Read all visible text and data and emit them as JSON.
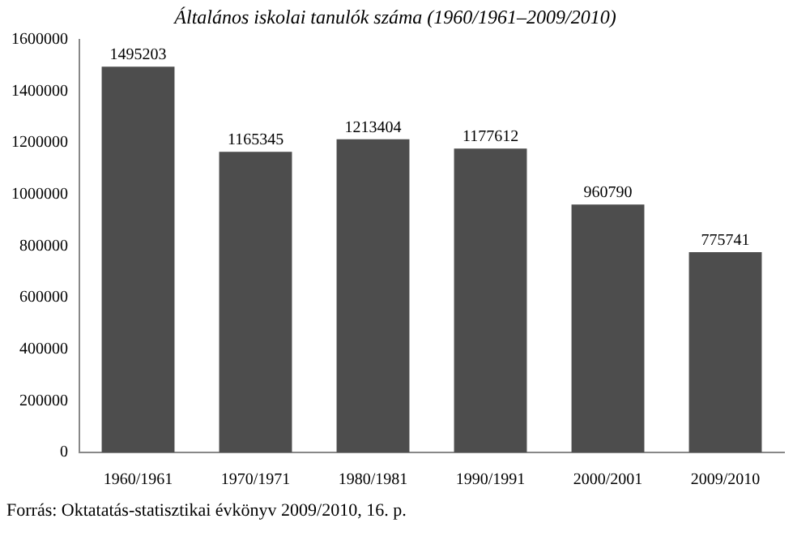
{
  "chart_data": {
    "type": "bar",
    "title": "Általános iskolai tanulók száma (1960/1961–2009/2010)",
    "categories": [
      "1960/1961",
      "1970/1971",
      "1980/1981",
      "1990/1991",
      "2000/2001",
      "2009/2010"
    ],
    "values": [
      1495203,
      1165345,
      1213404,
      1177612,
      960790,
      775741
    ],
    "color": "#4d4d4d",
    "ylim": [
      0,
      1600000
    ],
    "yticks": [
      0,
      200000,
      400000,
      600000,
      800000,
      1000000,
      1200000,
      1400000,
      1600000
    ],
    "data_labels": true,
    "annotations": [
      "Forrás: Oktatatás-statisztikai évkönyv 2009/2010, 16. p."
    ]
  }
}
